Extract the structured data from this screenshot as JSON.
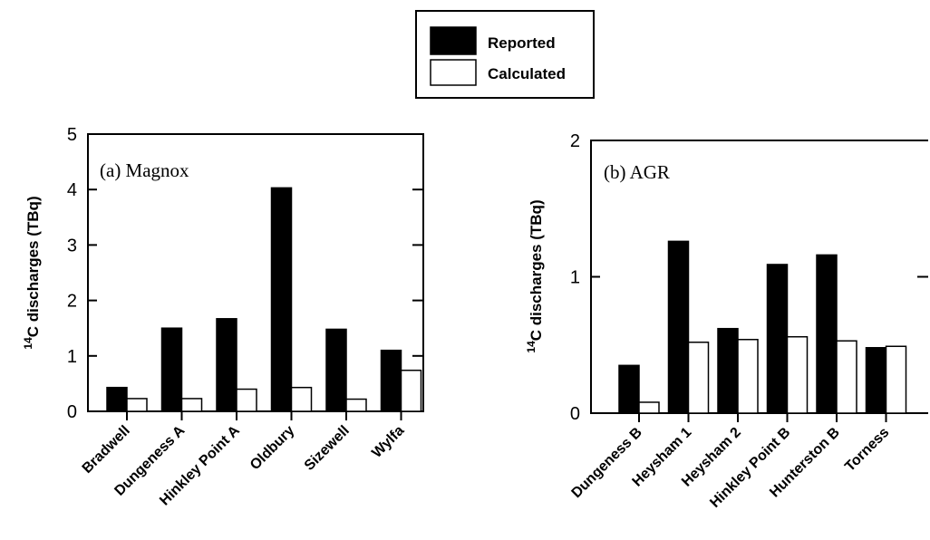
{
  "legend": {
    "items": [
      {
        "label": "Reported",
        "color": "#000000"
      },
      {
        "label": "Calculated",
        "color": "#ffffff"
      }
    ]
  },
  "chart_data": [
    {
      "type": "bar",
      "panel_label": "(a) Magnox",
      "ylabel": "discharges (TBq)",
      "ylabel_prefix": "14C",
      "ylim": [
        0,
        5
      ],
      "yticks": [
        0,
        1,
        2,
        3,
        4,
        5
      ],
      "categories": [
        "Bradwell",
        "Dungeness A",
        "Hinkley Point A",
        "Oldbury",
        "Sizewell",
        "Wylfa"
      ],
      "series": [
        {
          "name": "Reported",
          "values": [
            0.43,
            1.5,
            1.67,
            4.03,
            1.48,
            1.1
          ]
        },
        {
          "name": "Calculated",
          "values": [
            0.23,
            0.23,
            0.4,
            0.43,
            0.22,
            0.74
          ]
        }
      ]
    },
    {
      "type": "bar",
      "panel_label": "(b) AGR",
      "ylabel": "discharges (TBq)",
      "ylabel_prefix": "14C",
      "ylim": [
        0,
        2
      ],
      "yticks": [
        0,
        1,
        2
      ],
      "categories": [
        "Dungeness B",
        "Heysham 1",
        "Heysham 2",
        "Hinkley Point B",
        "Hunterston B",
        "Torness"
      ],
      "series": [
        {
          "name": "Reported",
          "values": [
            0.35,
            1.26,
            0.62,
            1.09,
            1.16,
            0.48
          ]
        },
        {
          "name": "Calculated",
          "values": [
            0.08,
            0.52,
            0.54,
            0.56,
            0.53,
            0.49
          ]
        }
      ]
    }
  ]
}
